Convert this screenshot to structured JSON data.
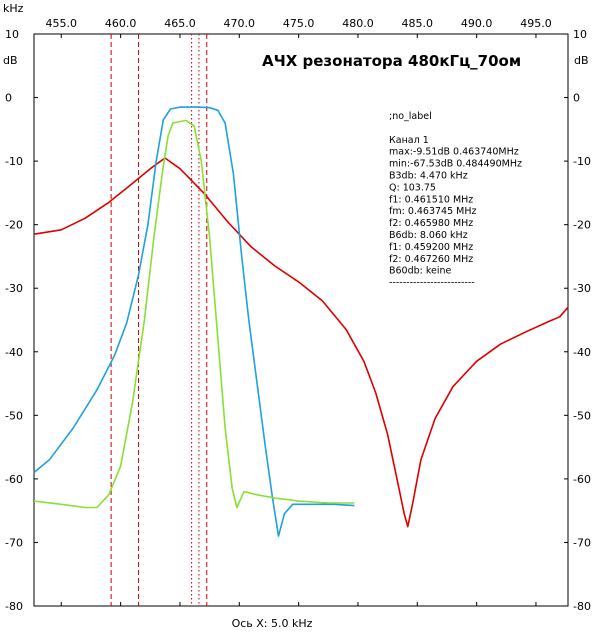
{
  "chart_data": {
    "type": "line",
    "title": "АЧХ резонатора 480кГц_70ом",
    "xlabel": "Ось X: 5.0 kHz",
    "x_unit_label": "kHz",
    "y_unit_label": "dB",
    "xlim": [
      452.7,
      497.7
    ],
    "ylim": [
      -80,
      10
    ],
    "grid": false,
    "x_ticks": [
      {
        "value": 455,
        "label": "455.0"
      },
      {
        "value": 460,
        "label": "460.0"
      },
      {
        "value": 465,
        "label": "465.0"
      },
      {
        "value": 470,
        "label": "470.0"
      },
      {
        "value": 475,
        "label": "475.0"
      },
      {
        "value": 480,
        "label": "480.0"
      },
      {
        "value": 485,
        "label": "485.0"
      },
      {
        "value": 490,
        "label": "490.0"
      },
      {
        "value": 495,
        "label": "495.0"
      }
    ],
    "y_ticks": [
      {
        "value": 10,
        "label": "10"
      },
      {
        "value": 0,
        "label": "0"
      },
      {
        "value": -10,
        "label": "-10"
      },
      {
        "value": -20,
        "label": "-20"
      },
      {
        "value": -30,
        "label": "-30"
      },
      {
        "value": -40,
        "label": "-40"
      },
      {
        "value": -50,
        "label": "-50"
      },
      {
        "value": -60,
        "label": "-60"
      },
      {
        "value": -70,
        "label": "-70"
      },
      {
        "value": -80,
        "label": "-80"
      }
    ],
    "markers": [
      {
        "x": 459.2,
        "color": "#cc0000",
        "style": "dashed"
      },
      {
        "x": 461.51,
        "color": "#cc0000",
        "style": "dashed"
      },
      {
        "x": 465.98,
        "color": "#cc0000",
        "style": "dotted"
      },
      {
        "x": 466.6,
        "color": "#cc0000",
        "style": "dotted"
      },
      {
        "x": 467.26,
        "color": "#cc0000",
        "style": "dashed"
      }
    ],
    "series": [
      {
        "color": "#dd0000",
        "points": [
          [
            452.7,
            -21.5
          ],
          [
            455,
            -20.8
          ],
          [
            457,
            -19.0
          ],
          [
            459,
            -16.5
          ],
          [
            461,
            -13.5
          ],
          [
            462.5,
            -11.2
          ],
          [
            463.74,
            -9.51
          ],
          [
            465,
            -11.2
          ],
          [
            467,
            -15.0
          ],
          [
            469,
            -19.5
          ],
          [
            471,
            -23.5
          ],
          [
            473,
            -26.5
          ],
          [
            475,
            -29.0
          ],
          [
            477,
            -32.0
          ],
          [
            479,
            -36.5
          ],
          [
            480.5,
            -41.5
          ],
          [
            481.5,
            -46.5
          ],
          [
            482.5,
            -53.0
          ],
          [
            483.4,
            -61.0
          ],
          [
            483.9,
            -65.5
          ],
          [
            484.2,
            -67.5
          ],
          [
            484.6,
            -64.0
          ],
          [
            485.3,
            -57.0
          ],
          [
            486.5,
            -50.5
          ],
          [
            488,
            -45.5
          ],
          [
            490,
            -41.5
          ],
          [
            492,
            -38.8
          ],
          [
            494,
            -37.0
          ],
          [
            496,
            -35.3
          ],
          [
            497,
            -34.5
          ],
          [
            497.7,
            -33.0
          ]
        ]
      },
      {
        "color": "#1fa0e0",
        "points": [
          [
            452.7,
            -59.0
          ],
          [
            454,
            -57.0
          ],
          [
            456,
            -52.0
          ],
          [
            458,
            -46.0
          ],
          [
            459.5,
            -40.5
          ],
          [
            460.5,
            -35.5
          ],
          [
            461.5,
            -28.0
          ],
          [
            462.3,
            -20.0
          ],
          [
            463,
            -10.0
          ],
          [
            463.6,
            -3.5
          ],
          [
            464.2,
            -1.8
          ],
          [
            465,
            -1.5
          ],
          [
            466.5,
            -1.5
          ],
          [
            467.5,
            -1.6
          ],
          [
            468.2,
            -2.0
          ],
          [
            468.8,
            -4.0
          ],
          [
            469.5,
            -12.0
          ],
          [
            470.2,
            -25.0
          ],
          [
            470.8,
            -35.0
          ],
          [
            471.5,
            -45.0
          ],
          [
            472.2,
            -55.0
          ],
          [
            472.8,
            -63.0
          ],
          [
            473.3,
            -69.0
          ],
          [
            473.8,
            -65.5
          ],
          [
            474.5,
            -64.0
          ],
          [
            476,
            -64.0
          ],
          [
            478,
            -64.0
          ],
          [
            479.7,
            -64.2
          ]
        ]
      },
      {
        "color": "#88e033",
        "points": [
          [
            452.7,
            -63.5
          ],
          [
            455,
            -64.0
          ],
          [
            457,
            -64.5
          ],
          [
            458,
            -64.5
          ],
          [
            459,
            -62.5
          ],
          [
            460,
            -58.0
          ],
          [
            461,
            -48.0
          ],
          [
            462,
            -35.0
          ],
          [
            462.8,
            -22.0
          ],
          [
            463.5,
            -12.0
          ],
          [
            464,
            -6.0
          ],
          [
            464.4,
            -4.0
          ],
          [
            465.5,
            -3.6
          ],
          [
            466.2,
            -4.5
          ],
          [
            466.8,
            -10.0
          ],
          [
            467.5,
            -22.0
          ],
          [
            468.2,
            -38.0
          ],
          [
            468.8,
            -52.0
          ],
          [
            469.4,
            -61.5
          ],
          [
            469.8,
            -64.5
          ],
          [
            470.4,
            -62.0
          ],
          [
            471.5,
            -62.5
          ],
          [
            473,
            -63.0
          ],
          [
            475,
            -63.5
          ],
          [
            477.5,
            -63.8
          ],
          [
            479.7,
            -63.8
          ]
        ]
      }
    ],
    "info_block": [
      ";no_label",
      "",
      "Канал 1",
      "max:-9.51dB 0.463740MHz",
      "min:-67.53dB 0.484490MHz",
      "B3db: 4.470 kHz",
      "Q: 103.75",
      "f1: 0.461510 MHz",
      "fm: 0.463745 MHz",
      "f2: 0.465980 MHz",
      "B6db: 8.060 kHz",
      "f1: 0.459200 MHz",
      "f2: 0.467260 MHz",
      "B60db: keine",
      "-------------------------"
    ]
  }
}
